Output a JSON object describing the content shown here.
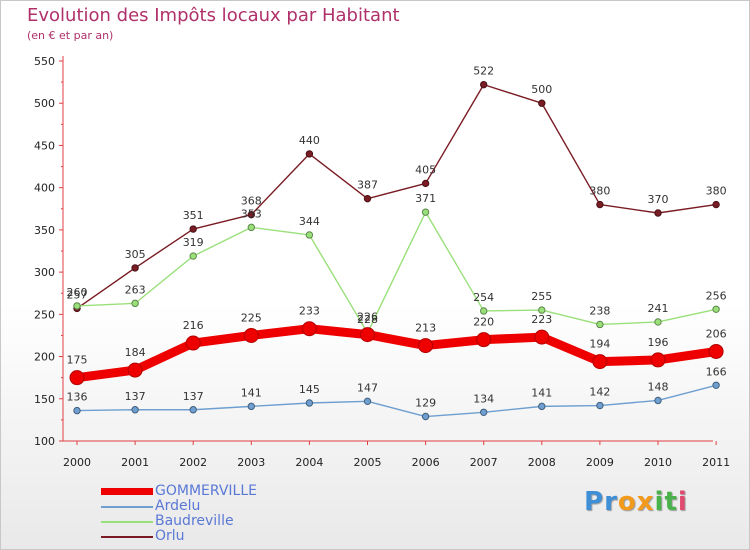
{
  "chart_data": {
    "type": "line",
    "title": "Evolution des Impôts locaux par Habitant",
    "subtitle": "(en € et par an)",
    "xlabel": "",
    "ylabel": "",
    "ylim": [
      100,
      550
    ],
    "yticks": [
      100,
      150,
      200,
      250,
      300,
      350,
      400,
      450,
      500,
      550
    ],
    "categories": [
      "2000",
      "2001",
      "2002",
      "2003",
      "2004",
      "2005",
      "2006",
      "2007",
      "2008",
      "2009",
      "2010",
      "2011"
    ],
    "series": [
      {
        "name": "Orlu",
        "color": "#7a1c24",
        "values": [
          257,
          305,
          351,
          368,
          440,
          387,
          405,
          522,
          500,
          380,
          370,
          380
        ]
      },
      {
        "name": "Baudreville",
        "color": "#9ae07a",
        "values": [
          260,
          263,
          319,
          353,
          344,
          228,
          371,
          254,
          255,
          238,
          241,
          256
        ]
      },
      {
        "name": "Ardelu",
        "color": "#6e9fd0",
        "values": [
          136,
          137,
          137,
          141,
          145,
          147,
          129,
          134,
          141,
          142,
          148,
          166
        ]
      },
      {
        "name": "GOMMERVILLE",
        "color": "#ee0000",
        "values": [
          175,
          184,
          216,
          225,
          233,
          226,
          213,
          220,
          223,
          194,
          196,
          206
        ]
      }
    ],
    "legend": [
      "GOMMERVILLE",
      "Ardelu",
      "Baudreville",
      "Orlu"
    ],
    "legend_position": "bottom-left",
    "grid": false
  },
  "branding": {
    "letters": [
      {
        "ch": "P",
        "color": "#3f8fd6"
      },
      {
        "ch": "r",
        "color": "#3f8fd6"
      },
      {
        "ch": "o",
        "color": "#f39a1c"
      },
      {
        "ch": "x",
        "color": "#f39a1c"
      },
      {
        "ch": "i",
        "color": "#49b24a"
      },
      {
        "ch": "t",
        "color": "#49b24a"
      },
      {
        "ch": "i",
        "color": "#e04a6e"
      }
    ]
  }
}
